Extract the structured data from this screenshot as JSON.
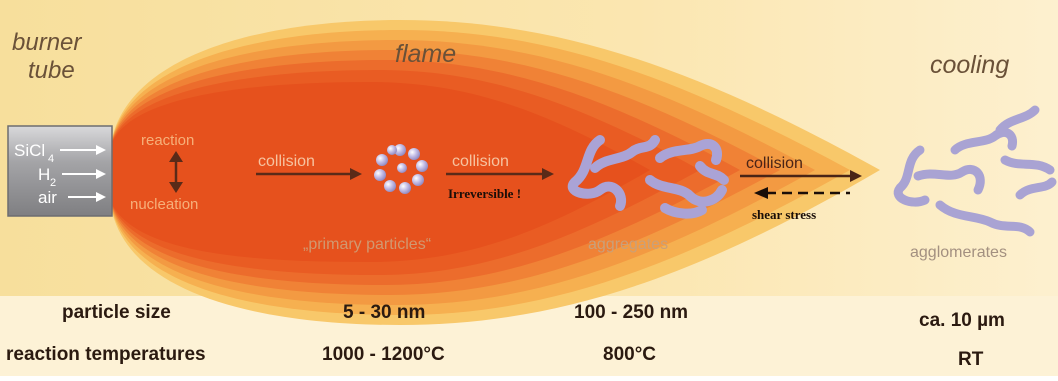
{
  "headings": {
    "burner_line1": "burner",
    "burner_line2": "tube",
    "flame": "flame",
    "cooling": "cooling"
  },
  "inputs": [
    "SiCl",
    "H",
    "air"
  ],
  "subscripts": {
    "sicl": "4",
    "h": "2"
  },
  "stages": {
    "reaction": "reaction",
    "nucleation": "nucleation",
    "collision1": "collision",
    "collision2": "collision",
    "irreversible": "Irreversible !",
    "collision3": "collision",
    "shear_stress": "shear stress",
    "primary_particles": "„primary particles“",
    "aggregates": "aggregates",
    "agglomerates": "agglomerates"
  },
  "table": {
    "particle_size_label": "particle size",
    "particle_size_primary": "5 - 30 nm",
    "particle_size_aggregates": "100 - 250 nm",
    "particle_size_agglomerates": "ca. 10 µm",
    "temperature_label": "reaction temperatures",
    "temperature_primary": "1000 - 1200°C",
    "temperature_aggregates": "800°C",
    "temperature_agglomerates": "RT"
  },
  "colors": {
    "background": "#fbe7b1",
    "flame_outer": "#f8c463",
    "flame_core": "#e84f1a",
    "tube": "#9a9a9c",
    "particle": "#a9a3d3",
    "heading": "#6a5138",
    "label_muted": "#c99a6a",
    "arrow": "#5a2a18"
  },
  "icons": [
    "arrow-icon",
    "double-arrow-icon",
    "dashed-arrow-left-icon"
  ]
}
